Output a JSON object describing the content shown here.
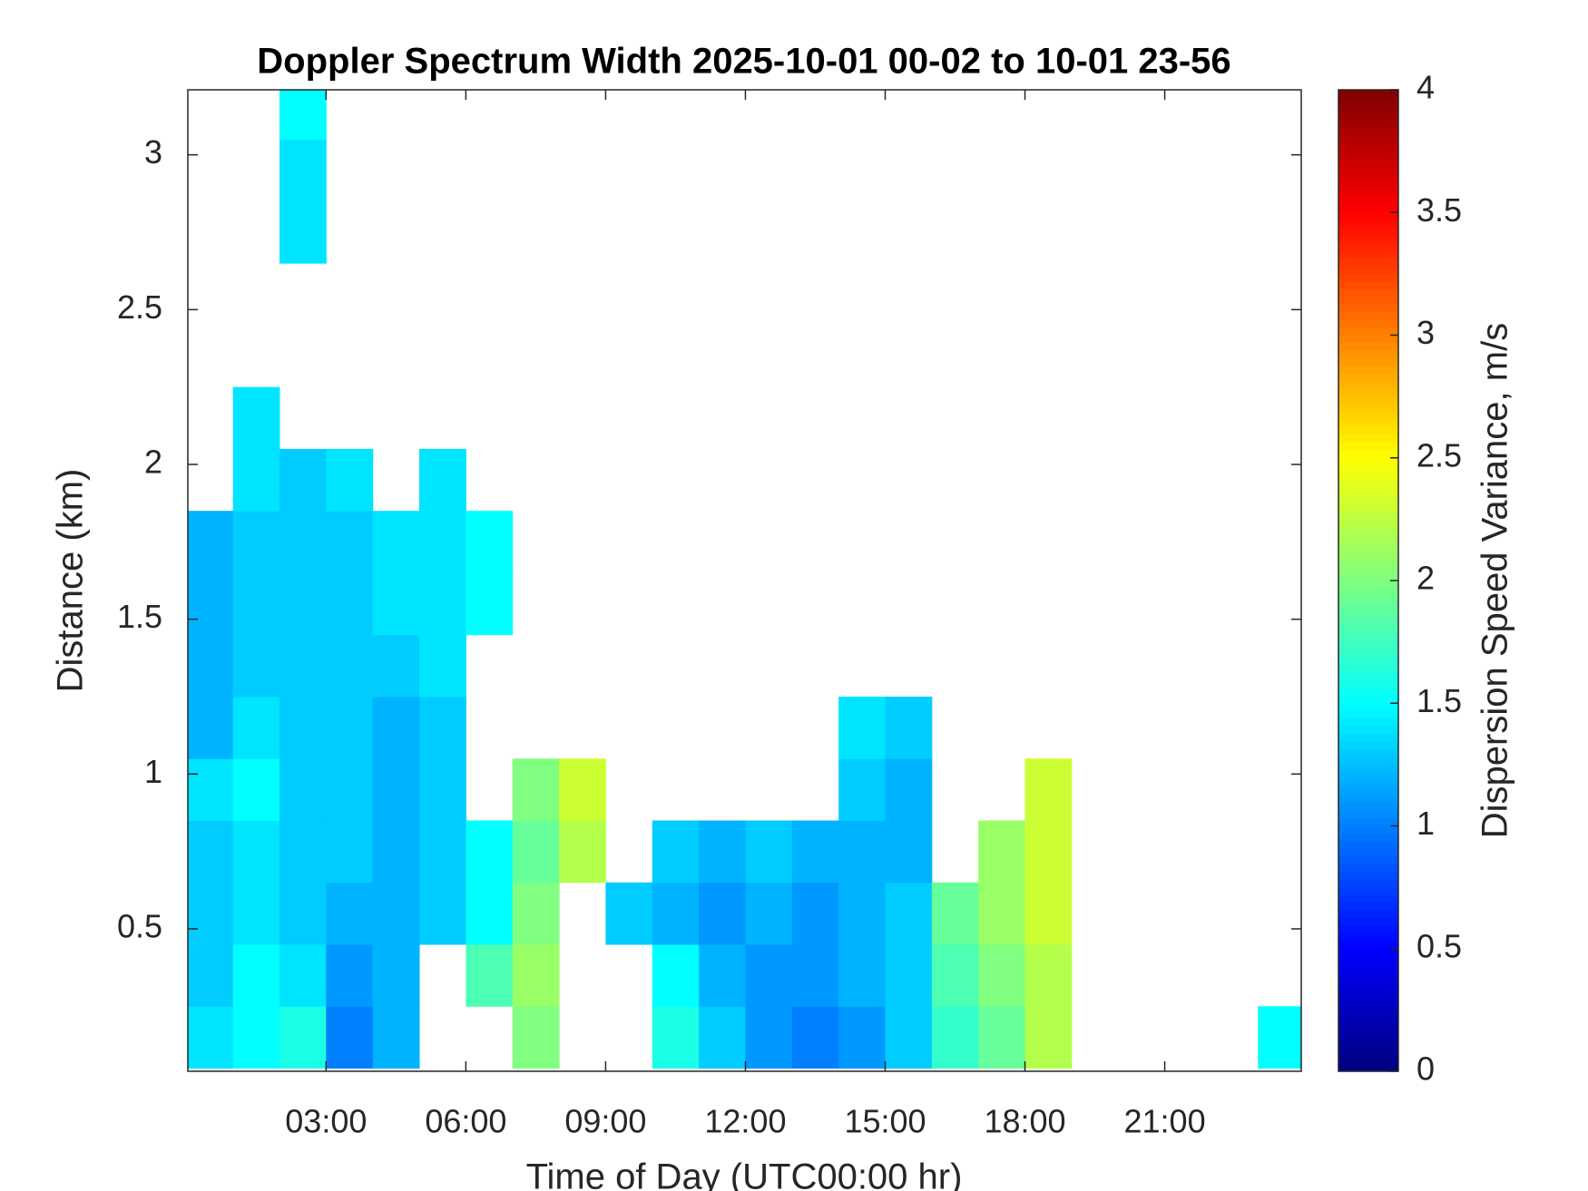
{
  "chart_data": {
    "type": "heatmap",
    "title": "Doppler Spectrum Width 2025-10-01 00-02 to 10-01 23-56",
    "x_label": "Time of Day (UTC00:00 hr)",
    "y_label": "Distance (km)",
    "colorbar_label": "Dispersion Speed Variance, m/s",
    "colormap": "jet",
    "xlim": [
      0.033,
      23.93
    ],
    "xticks": [
      {
        "value": 3,
        "label": "03:00"
      },
      {
        "value": 6,
        "label": "06:00"
      },
      {
        "value": 9,
        "label": "09:00"
      },
      {
        "value": 12,
        "label": "12:00"
      },
      {
        "value": 15,
        "label": "15:00"
      },
      {
        "value": 18,
        "label": "18:00"
      },
      {
        "value": 21,
        "label": "21:00"
      }
    ],
    "ylim": [
      0.04,
      3.21
    ],
    "yticks": [
      0.5,
      1,
      1.5,
      2,
      2.5,
      3
    ],
    "clim": [
      0,
      4
    ],
    "cticks": [
      0,
      0.5,
      1,
      1.5,
      2,
      2.5,
      3,
      3.5,
      4
    ],
    "x": [
      0.5,
      1.5,
      2.5,
      3.5,
      4.5,
      5.5,
      6.5,
      7.5,
      8.5,
      9.5,
      10.5,
      11.5,
      12.5,
      13.5,
      14.5,
      15.5,
      16.5,
      17.5,
      18.5,
      19.5,
      20.5,
      21.5,
      22.5,
      23.5
    ],
    "y": [
      0.15,
      0.35,
      0.55,
      0.75,
      0.95,
      1.15,
      1.35,
      1.55,
      1.75,
      1.95,
      2.15,
      2.35,
      2.55,
      2.75,
      2.95,
      3.15
    ],
    "z": [
      [
        1.4,
        1.5,
        1.6,
        1.0,
        1.2,
        null,
        null,
        2.0,
        null,
        null,
        1.6,
        1.3,
        1.1,
        1.0,
        1.1,
        1.3,
        1.7,
        1.9,
        2.2,
        null,
        null,
        null,
        null,
        1.5
      ],
      [
        1.3,
        1.5,
        1.4,
        1.1,
        1.2,
        null,
        1.8,
        2.1,
        null,
        null,
        1.5,
        1.2,
        1.1,
        1.1,
        1.2,
        1.3,
        1.8,
        2.0,
        2.2,
        null,
        null,
        null,
        null,
        null
      ],
      [
        1.3,
        1.4,
        1.3,
        1.2,
        1.2,
        1.3,
        1.5,
        2.0,
        null,
        1.3,
        1.2,
        1.1,
        1.2,
        1.1,
        1.2,
        1.3,
        1.9,
        2.1,
        2.3,
        null,
        null,
        null,
        null,
        null
      ],
      [
        1.3,
        1.4,
        1.3,
        1.3,
        1.2,
        1.3,
        1.5,
        1.9,
        2.2,
        null,
        1.3,
        1.2,
        1.3,
        1.2,
        1.2,
        1.2,
        null,
        2.1,
        2.3,
        null,
        null,
        null,
        null,
        null
      ],
      [
        1.4,
        1.5,
        1.3,
        1.3,
        1.2,
        1.3,
        null,
        2.0,
        2.3,
        null,
        null,
        null,
        null,
        null,
        1.3,
        1.2,
        null,
        null,
        2.3,
        null,
        null,
        null,
        null,
        null
      ],
      [
        1.2,
        1.4,
        1.3,
        1.3,
        1.2,
        1.3,
        null,
        null,
        null,
        null,
        null,
        null,
        null,
        null,
        1.4,
        1.3,
        null,
        null,
        null,
        null,
        null,
        null,
        null,
        null
      ],
      [
        1.2,
        1.3,
        1.3,
        1.3,
        1.3,
        1.4,
        null,
        null,
        null,
        null,
        null,
        null,
        null,
        null,
        null,
        null,
        null,
        null,
        null,
        null,
        null,
        null,
        null,
        null
      ],
      [
        1.2,
        1.3,
        1.3,
        1.3,
        1.4,
        1.4,
        1.5,
        null,
        null,
        null,
        null,
        null,
        null,
        null,
        null,
        null,
        null,
        null,
        null,
        null,
        null,
        null,
        null,
        null
      ],
      [
        1.2,
        1.3,
        1.3,
        1.3,
        1.4,
        1.4,
        1.5,
        null,
        null,
        null,
        null,
        null,
        null,
        null,
        null,
        null,
        null,
        null,
        null,
        null,
        null,
        null,
        null,
        null
      ],
      [
        null,
        1.4,
        1.3,
        1.4,
        null,
        1.4,
        null,
        null,
        null,
        null,
        null,
        null,
        null,
        null,
        null,
        null,
        null,
        null,
        null,
        null,
        null,
        null,
        null,
        null
      ],
      [
        null,
        1.4,
        null,
        null,
        null,
        null,
        null,
        null,
        null,
        null,
        null,
        null,
        null,
        null,
        null,
        null,
        null,
        null,
        null,
        null,
        null,
        null,
        null,
        null
      ],
      [
        null,
        null,
        null,
        null,
        null,
        null,
        null,
        null,
        null,
        null,
        null,
        null,
        null,
        null,
        null,
        null,
        null,
        null,
        null,
        null,
        null,
        null,
        null,
        null
      ],
      [
        null,
        null,
        null,
        null,
        null,
        null,
        null,
        null,
        null,
        null,
        null,
        null,
        null,
        null,
        null,
        null,
        null,
        null,
        null,
        null,
        null,
        null,
        null,
        null
      ],
      [
        null,
        null,
        1.4,
        null,
        null,
        null,
        null,
        null,
        null,
        null,
        null,
        null,
        null,
        null,
        null,
        null,
        null,
        null,
        null,
        null,
        null,
        null,
        null,
        null
      ],
      [
        null,
        null,
        1.4,
        null,
        null,
        null,
        null,
        null,
        null,
        null,
        null,
        null,
        null,
        null,
        null,
        null,
        null,
        null,
        null,
        null,
        null,
        null,
        null,
        null
      ],
      [
        null,
        null,
        1.5,
        null,
        null,
        null,
        null,
        null,
        null,
        null,
        null,
        null,
        null,
        null,
        null,
        null,
        null,
        null,
        null,
        null,
        null,
        null,
        null,
        null
      ]
    ]
  }
}
